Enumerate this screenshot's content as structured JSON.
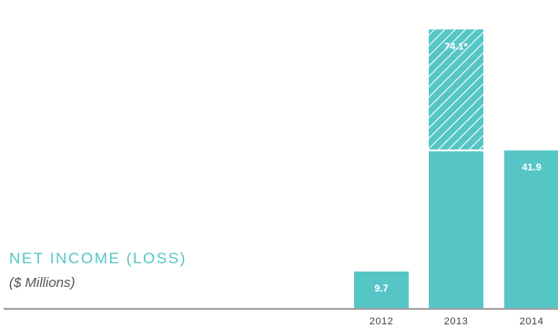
{
  "chart_data": {
    "type": "bar",
    "title": "NET INCOME (LOSS)",
    "subtitle": "($ Millions)",
    "categories": [
      "2012",
      "2013",
      "2014"
    ],
    "series": [
      {
        "values": [
          9.7,
          41.9,
          41.9
        ],
        "label_text": [
          "9.7",
          "",
          "41.9"
        ]
      },
      {
        "values": [
          0,
          32.2,
          0
        ],
        "pattern": "hatched",
        "label_text": [
          "",
          "74.1*",
          ""
        ]
      }
    ],
    "stacked": true,
    "ylim": [
      0,
      80
    ],
    "colors": {
      "bar": "#56c5c6",
      "hatch": "#ffffff",
      "title": "#56c5c6",
      "subtitle": "#555555",
      "axis": "#444444",
      "tick": "#444444"
    }
  }
}
